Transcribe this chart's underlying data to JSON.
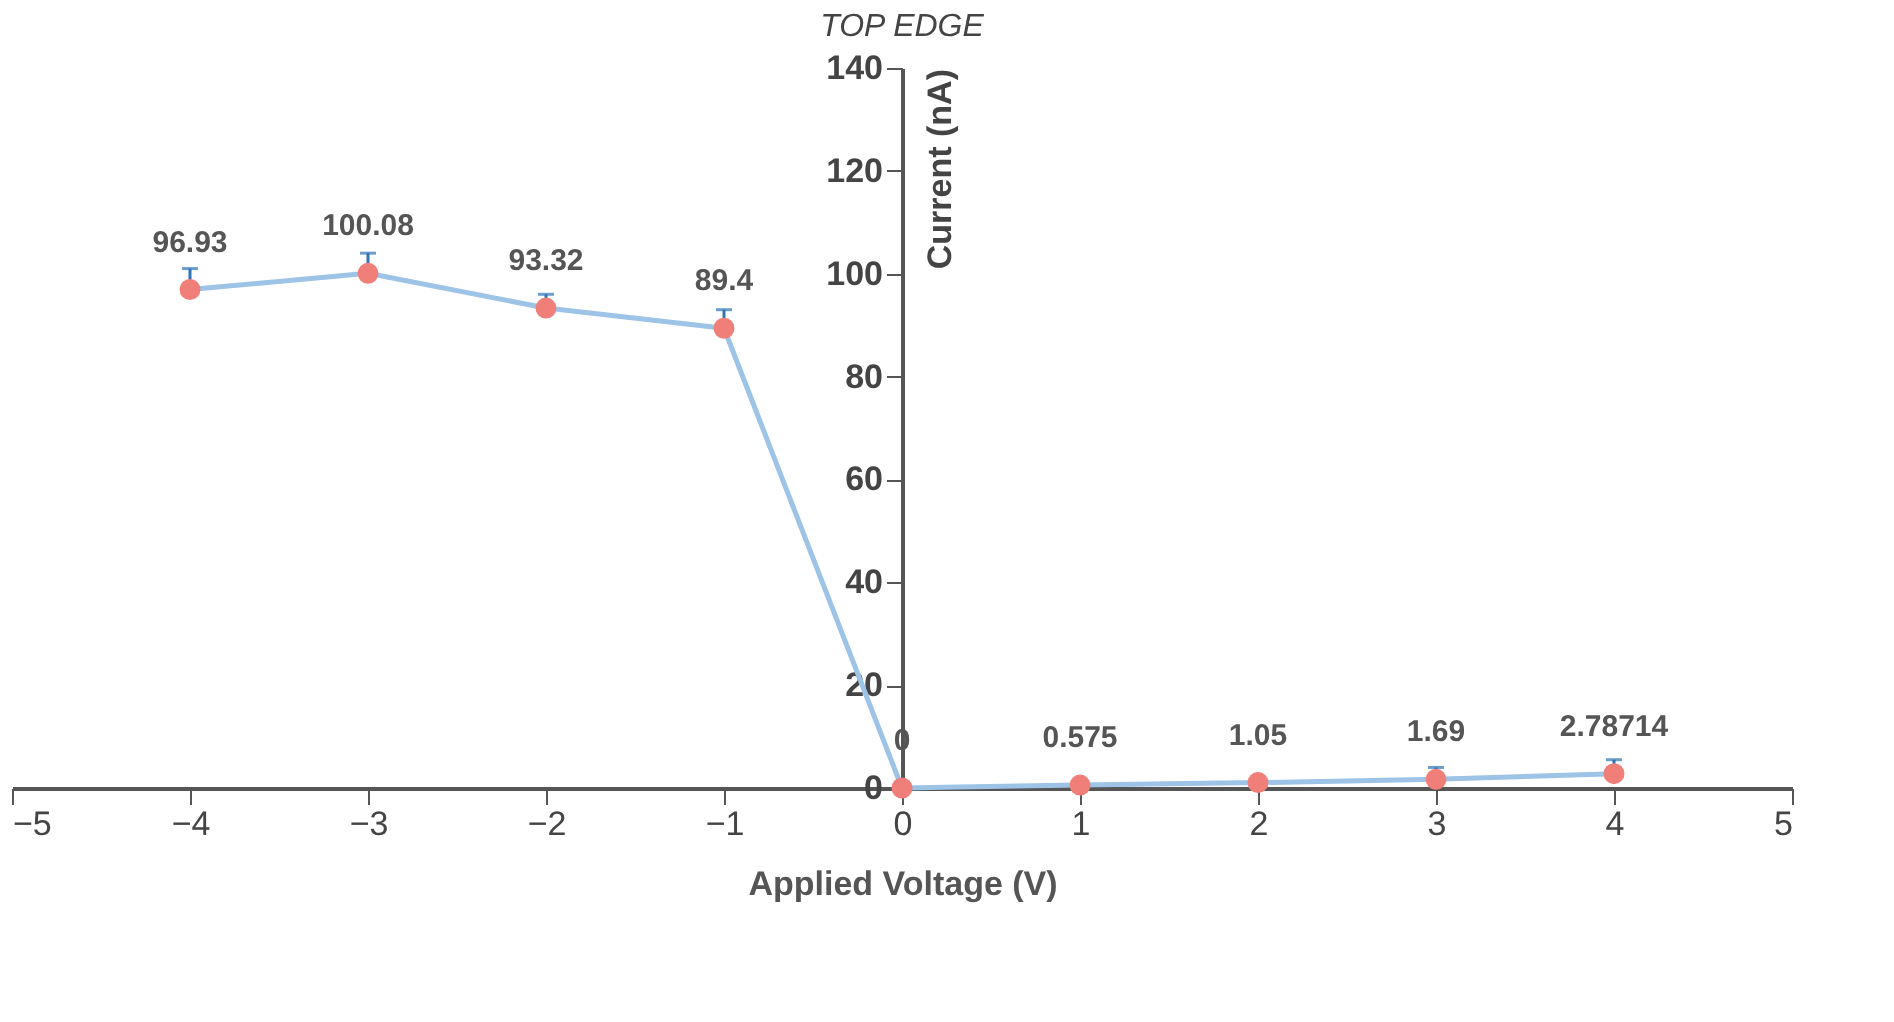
{
  "chart_data": {
    "type": "line",
    "title": "TOP EDGE",
    "xlabel": "Applied Voltage (V)",
    "ylabel": "Current (nA)",
    "x": [
      -4,
      -3,
      -2,
      -1,
      0,
      1,
      2,
      3,
      4
    ],
    "series": [
      {
        "color": "#9dc3e6",
        "colors": [
          "#f07f7a",
          "#f07f7a",
          "#f07f7a",
          "#f07f7a",
          "#f07f7a",
          "#f07f7a",
          "#f07f7a",
          "#f07f7a",
          "#f07f7a"
        ],
        "values": [
          96.93,
          100.08,
          93.32,
          89.4,
          0,
          0.575,
          1.05,
          1.69,
          2.78714
        ],
        "errors": [
          [
            96.93,
            101
          ],
          [
            100.08,
            104
          ],
          [
            93.32,
            96
          ],
          [
            89.4,
            93
          ],
          [
            0,
            0
          ],
          [
            0.575,
            0.575
          ],
          [
            1.05,
            1.05
          ],
          [
            1.69,
            4
          ],
          [
            2.78714,
            5.5
          ]
        ]
      }
    ],
    "xlim": [
      -5,
      5
    ],
    "xticks": [
      -5,
      -4,
      -3,
      -2,
      -1,
      0,
      1,
      2,
      3,
      4,
      5
    ],
    "ylim": [
      0,
      140
    ],
    "yticks": [
      0,
      20,
      40,
      60,
      80,
      100,
      120,
      140
    ],
    "data_labels": true,
    "marker": "circle",
    "line_style": "solid",
    "grid": false
  }
}
